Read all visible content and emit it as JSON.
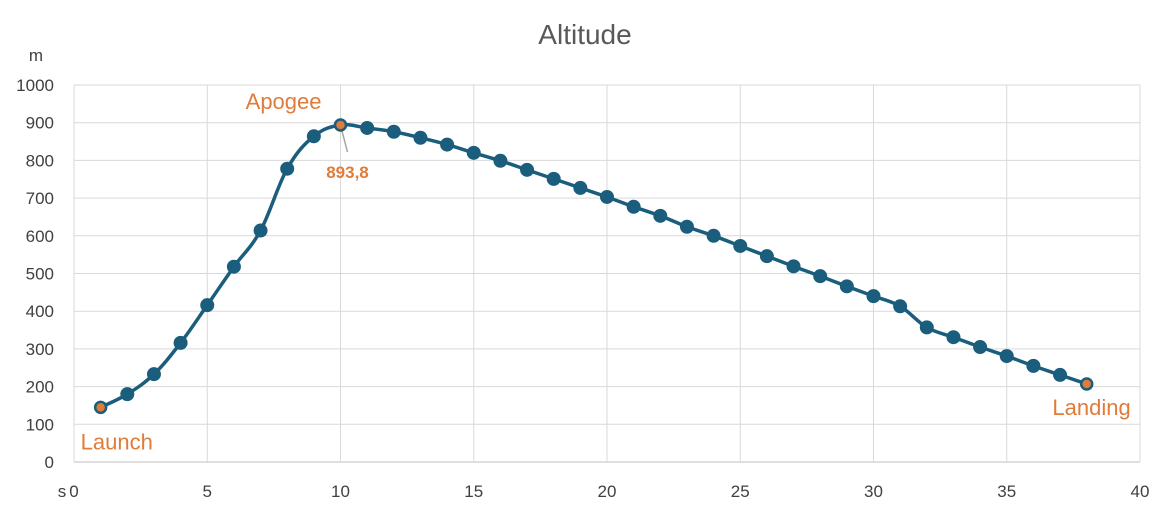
{
  "chart_data": {
    "type": "line",
    "title": "Altitude",
    "ylabel": "m",
    "xlabel": "s",
    "xlim": [
      0,
      40
    ],
    "ylim": [
      0,
      1000
    ],
    "xticks": [
      0,
      5,
      10,
      15,
      20,
      25,
      30,
      35,
      40
    ],
    "yticks": [
      0,
      100,
      200,
      300,
      400,
      500,
      600,
      700,
      800,
      900,
      1000
    ],
    "x_tick_labels": [
      "0",
      "5",
      "10",
      "15",
      "20",
      "25",
      "30",
      "35",
      "40"
    ],
    "y_tick_labels": [
      "0",
      "100",
      "200",
      "300",
      "400",
      "500",
      "600",
      "700",
      "800",
      "900",
      "1000"
    ],
    "grid": true,
    "smooth": true,
    "series": [
      {
        "x": [
          1,
          2,
          3,
          4,
          5,
          6,
          7,
          8,
          9,
          10,
          11,
          12,
          13,
          14,
          15,
          16,
          17,
          18,
          19,
          20,
          21,
          22,
          23,
          24,
          25,
          26,
          27,
          28,
          29,
          30,
          31,
          32,
          33,
          34,
          35,
          36,
          37,
          38
        ],
        "y": [
          145,
          180,
          233,
          316,
          416,
          518,
          614,
          778,
          864,
          893.8,
          886,
          876,
          860,
          842,
          820,
          799,
          775,
          751,
          727,
          703,
          677,
          653,
          624,
          600,
          573,
          546,
          519,
          493,
          466,
          440,
          413,
          357,
          331,
          305,
          281,
          255,
          231,
          207
        ]
      }
    ],
    "colors": {
      "line": "#1a5d7c",
      "highlight": "#e07b39",
      "grid": "#d9d9d9",
      "axis": "#bfbfbf"
    },
    "annotations": [
      {
        "text": "Launch",
        "x": 1,
        "y": 145
      },
      {
        "text": "Apogee",
        "x": 10,
        "y": 893.8
      },
      {
        "text": "Landing",
        "x": 38,
        "y": 207
      }
    ],
    "data_labels": [
      {
        "text": "893,8",
        "x": 10,
        "y": 893.8
      }
    ]
  }
}
